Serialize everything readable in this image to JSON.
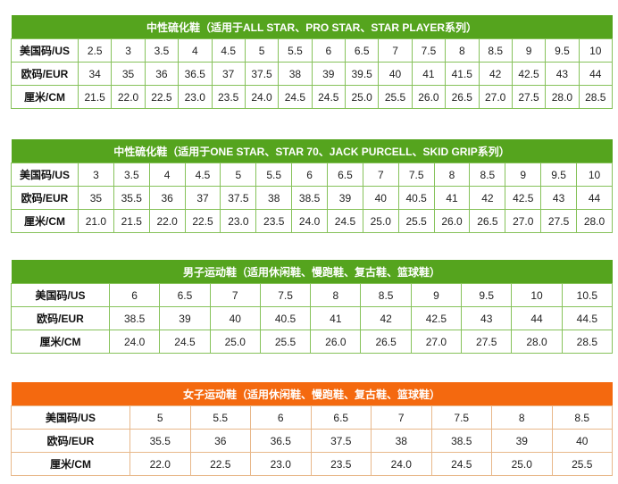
{
  "colors": {
    "green_header": "#55a41e",
    "orange_header": "#f4690f"
  },
  "row_labels": [
    "美国码/US",
    "欧码/EUR",
    "厘米/CM"
  ],
  "tables": [
    {
      "title": "中性硫化鞋（适用于ALL STAR、PRO STAR、STAR PLAYER系列）",
      "theme": "green",
      "rows": [
        [
          "2.5",
          "3",
          "3.5",
          "4",
          "4.5",
          "5",
          "5.5",
          "6",
          "6.5",
          "7",
          "7.5",
          "8",
          "8.5",
          "9",
          "9.5",
          "10"
        ],
        [
          "34",
          "35",
          "36",
          "36.5",
          "37",
          "37.5",
          "38",
          "39",
          "39.5",
          "40",
          "41",
          "41.5",
          "42",
          "42.5",
          "43",
          "44"
        ],
        [
          "21.5",
          "22.0",
          "22.5",
          "23.0",
          "23.5",
          "24.0",
          "24.5",
          "24.5",
          "25.0",
          "25.5",
          "26.0",
          "26.5",
          "27.0",
          "27.5",
          "28.0",
          "28.5"
        ]
      ]
    },
    {
      "title": "中性硫化鞋（适用于ONE STAR、STAR 70、JACK PURCELL、SKID GRIP系列）",
      "theme": "green",
      "rows": [
        [
          "3",
          "3.5",
          "4",
          "4.5",
          "5",
          "5.5",
          "6",
          "6.5",
          "7",
          "7.5",
          "8",
          "8.5",
          "9",
          "9.5",
          "10"
        ],
        [
          "35",
          "35.5",
          "36",
          "37",
          "37.5",
          "38",
          "38.5",
          "39",
          "40",
          "40.5",
          "41",
          "42",
          "42.5",
          "43",
          "44"
        ],
        [
          "21.0",
          "21.5",
          "22.0",
          "22.5",
          "23.0",
          "23.5",
          "24.0",
          "24.5",
          "25.0",
          "25.5",
          "26.0",
          "26.5",
          "27.0",
          "27.5",
          "28.0"
        ]
      ]
    },
    {
      "title": "男子运动鞋（适用休闲鞋、慢跑鞋、复古鞋、篮球鞋）",
      "theme": "green",
      "rows": [
        [
          "6",
          "6.5",
          "7",
          "7.5",
          "8",
          "8.5",
          "9",
          "9.5",
          "10",
          "10.5"
        ],
        [
          "38.5",
          "39",
          "40",
          "40.5",
          "41",
          "42",
          "42.5",
          "43",
          "44",
          "44.5"
        ],
        [
          "24.0",
          "24.5",
          "25.0",
          "25.5",
          "26.0",
          "26.5",
          "27.0",
          "27.5",
          "28.0",
          "28.5"
        ]
      ]
    },
    {
      "title": "女子运动鞋（适用休闲鞋、慢跑鞋、复古鞋、篮球鞋）",
      "theme": "orange",
      "rows": [
        [
          "5",
          "5.5",
          "6",
          "6.5",
          "7",
          "7.5",
          "8",
          "8.5"
        ],
        [
          "35.5",
          "36",
          "36.5",
          "37.5",
          "38",
          "38.5",
          "39",
          "40"
        ],
        [
          "22.0",
          "22.5",
          "23.0",
          "23.5",
          "24.0",
          "24.5",
          "25.0",
          "25.5"
        ]
      ]
    }
  ]
}
